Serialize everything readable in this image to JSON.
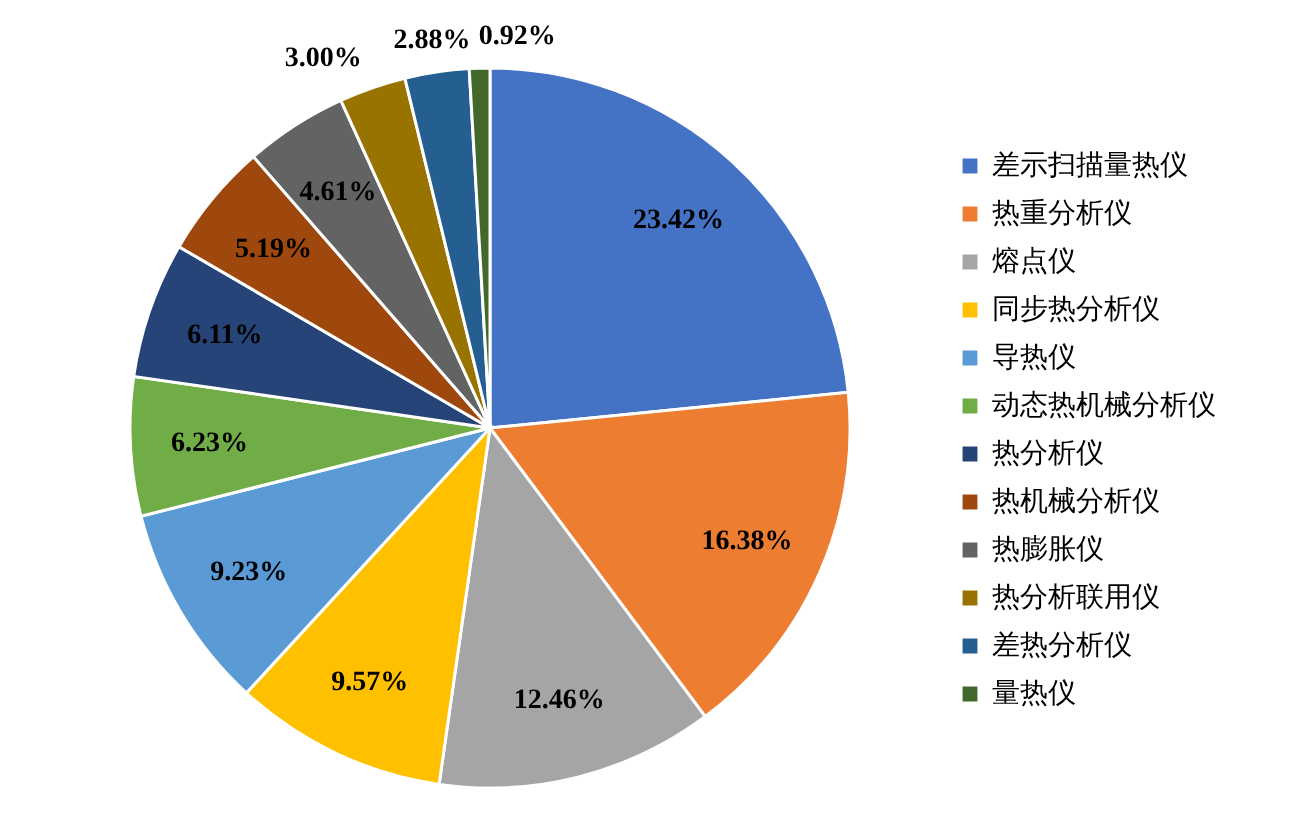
{
  "chart_data": {
    "type": "pie",
    "categories": [
      "差示扫描量热仪",
      "热重分析仪",
      "熔点仪",
      "同步热分析仪",
      "导热仪",
      "动态热机械分析仪",
      "热分析仪",
      "热机械分析仪",
      "热膨胀仪",
      "热分析联用仪",
      "差热分析仪",
      "量热仪"
    ],
    "values": [
      23.42,
      16.38,
      12.46,
      9.57,
      9.23,
      6.23,
      6.11,
      5.19,
      4.61,
      3.0,
      2.88,
      0.92
    ],
    "value_labels": [
      "23.42%",
      "16.38%",
      "12.46%",
      "9.57%",
      "9.23%",
      "6.23%",
      "6.11%",
      "5.19%",
      "4.61%",
      "3.00%",
      "2.88%",
      "0.92%"
    ],
    "colors": [
      "#4472c4",
      "#ed7d31",
      "#a5a5a5",
      "#ffc000",
      "#5b9bd5",
      "#70ad47",
      "#264478",
      "#9e480e",
      "#636363",
      "#997300",
      "#255e91",
      "#43682b"
    ],
    "legend": "right"
  }
}
